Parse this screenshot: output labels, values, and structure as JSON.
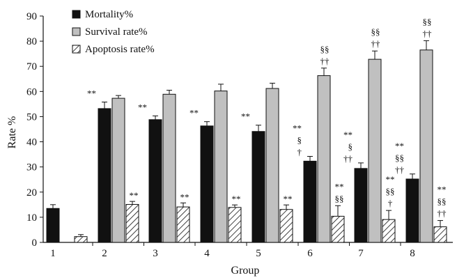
{
  "chart_data": {
    "type": "bar",
    "xlabel": "Group",
    "ylabel": "Rate %",
    "ylim": [
      0,
      90
    ],
    "yticks": [
      0,
      10,
      20,
      30,
      40,
      50,
      60,
      70,
      80,
      90
    ],
    "categories": [
      "1",
      "2",
      "3",
      "4",
      "5",
      "6",
      "7",
      "8"
    ],
    "grid": false,
    "legend_position": "top-left",
    "series": [
      {
        "name": "Mortality%",
        "fill": "#111111",
        "pattern": "solid",
        "values": [
          13.5,
          53.2,
          48.8,
          46.3,
          44.1,
          32.3,
          29.4,
          25.2
        ],
        "errors": [
          1.5,
          2.6,
          1.5,
          1.7,
          2.5,
          1.9,
          2.2,
          2.0
        ],
        "annotations": [
          [],
          [
            "**"
          ],
          [
            "**"
          ],
          [
            "**"
          ],
          [
            "**"
          ],
          [
            "**",
            "§",
            "†"
          ],
          [
            "**",
            "§",
            "††"
          ],
          [
            "**",
            "§§",
            "††"
          ]
        ]
      },
      {
        "name": "Survival rate%",
        "fill": "#c0c0c0",
        "pattern": "solid",
        "values": [
          null,
          57.3,
          58.9,
          60.2,
          61.2,
          66.3,
          72.8,
          76.5
        ],
        "errors": [
          null,
          1.1,
          1.6,
          2.7,
          2.1,
          3.0,
          3.3,
          3.7
        ],
        "annotations": [
          [],
          [],
          [],
          [],
          [],
          [
            "§§",
            "††"
          ],
          [
            "§§",
            "††"
          ],
          [
            "§§",
            "††"
          ]
        ]
      },
      {
        "name": "Apoptosis rate%",
        "fill": "#ffffff",
        "pattern": "hatch",
        "values": [
          2.3,
          15.1,
          14.1,
          13.9,
          13.1,
          10.4,
          9.1,
          6.2
        ],
        "errors": [
          0.8,
          1.2,
          1.6,
          1.0,
          1.8,
          4.2,
          3.6,
          2.5
        ],
        "annotations": [
          [],
          [
            "**"
          ],
          [
            "**"
          ],
          [
            "**"
          ],
          [
            "**"
          ],
          [
            "**",
            "§§"
          ],
          [
            "**",
            "§§",
            "†"
          ],
          [
            "**",
            "§§",
            "††"
          ]
        ]
      }
    ]
  }
}
